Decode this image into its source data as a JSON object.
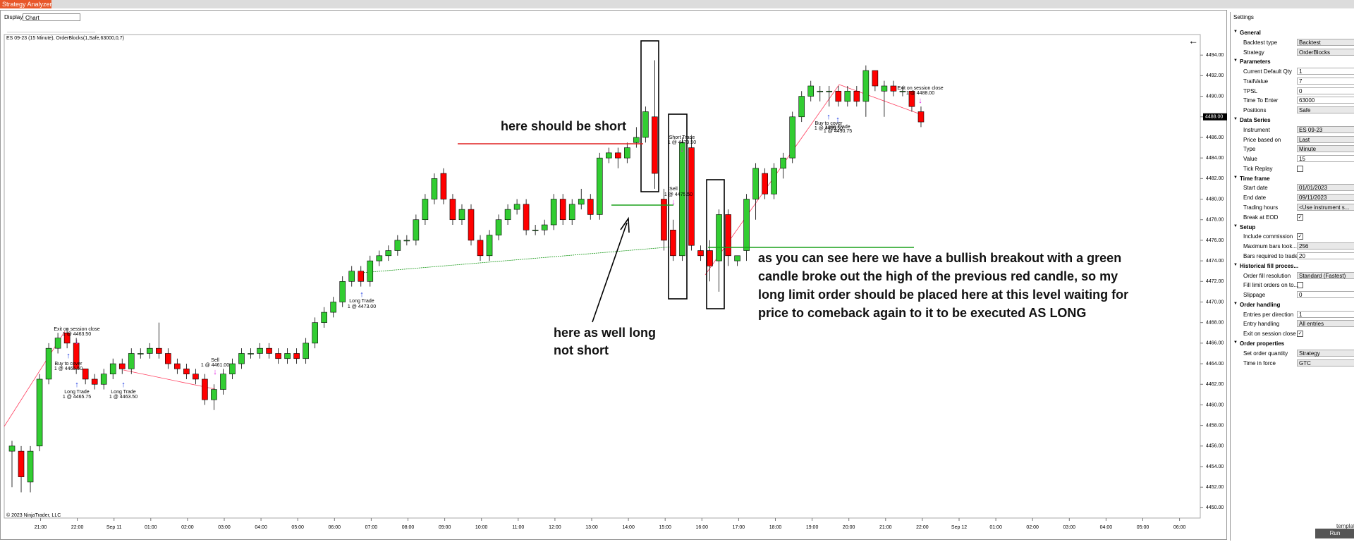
{
  "window": {
    "title": "Strategy Analyzer"
  },
  "toolbar": {
    "display_label": "Display",
    "display_value": "Chart"
  },
  "chart_data": {
    "type": "candlestick",
    "title": "ES 09-23 (15 Minute), OrderBlocks(1,Safe,63000,0,7)",
    "copyright": "© 2023 NinjaTrader, LLC",
    "up_color": "#32cd32",
    "down_color": "#ff0000",
    "ohlc": [
      [
        4455.5,
        4456.5,
        4452,
        4456
      ],
      [
        4455.5,
        4456,
        4451.5,
        4453
      ],
      [
        4452.5,
        4456,
        4451.5,
        4455.5
      ],
      [
        4456,
        4463,
        4455.5,
        4462.5
      ],
      [
        4462.5,
        4466,
        4462,
        4465.5
      ],
      [
        4465.5,
        4467,
        4465,
        4466.5
      ],
      [
        4467,
        4467.5,
        4465.5,
        4466
      ],
      [
        4466,
        4466.5,
        4463,
        4463.5
      ],
      [
        4463.5,
        4463.5,
        4462,
        4462.5
      ],
      [
        4462.5,
        4463,
        4461.5,
        4462
      ],
      [
        4462,
        4463.5,
        4461.5,
        4463
      ],
      [
        4463,
        4464.5,
        4462.5,
        4464
      ],
      [
        4464,
        4464.5,
        4463,
        4463.5
      ],
      [
        4463.5,
        4465.5,
        4463,
        4465
      ],
      [
        4465,
        4465.5,
        4464.5,
        4465
      ],
      [
        4465,
        4466,
        4464.5,
        4465.5
      ],
      [
        4465.5,
        4468,
        4464.5,
        4465
      ],
      [
        4465,
        4465.5,
        4463.5,
        4464
      ],
      [
        4464,
        4464.5,
        4463,
        4463.5
      ],
      [
        4463.5,
        4464,
        4462.5,
        4463
      ],
      [
        4463,
        4463.5,
        4462,
        4462.5
      ],
      [
        4462.5,
        4463,
        4460,
        4460.5
      ],
      [
        4460.5,
        4462,
        4459.5,
        4461.5
      ],
      [
        4461.5,
        4463.5,
        4461,
        4463
      ],
      [
        4463,
        4464.5,
        4462.5,
        4464
      ],
      [
        4464,
        4465.5,
        4463.5,
        4465
      ],
      [
        4465,
        4465.5,
        4464.5,
        4465
      ],
      [
        4465,
        4466,
        4464.5,
        4465.5
      ],
      [
        4465.5,
        4466,
        4464.5,
        4465
      ],
      [
        4465,
        4465.5,
        4464,
        4464.5
      ],
      [
        4464.5,
        4465.5,
        4464,
        4465
      ],
      [
        4465,
        4465.5,
        4464,
        4464.5
      ],
      [
        4464.5,
        4466.5,
        4464,
        4466
      ],
      [
        4466,
        4468.5,
        4465.5,
        4468
      ],
      [
        4468,
        4469.5,
        4467.5,
        4469
      ],
      [
        4469,
        4470.5,
        4468.5,
        4470
      ],
      [
        4470,
        4472.5,
        4469.5,
        4472
      ],
      [
        4472,
        4473.5,
        4471.5,
        4473
      ],
      [
        4473,
        4473.5,
        4471.5,
        4472
      ],
      [
        4472,
        4474.5,
        4471.5,
        4474
      ],
      [
        4474,
        4475,
        4473.5,
        4474.5
      ],
      [
        4474.5,
        4475.5,
        4474,
        4475
      ],
      [
        4475,
        4476.5,
        4474.5,
        4476
      ],
      [
        4476,
        4476.5,
        4475.5,
        4476
      ],
      [
        4476,
        4478.5,
        4475.5,
        4478
      ],
      [
        4478,
        4480.5,
        4477.5,
        4480
      ],
      [
        4480,
        4482.5,
        4479.5,
        4482
      ],
      [
        4482.5,
        4483,
        4479.5,
        4480
      ],
      [
        4480,
        4480.5,
        4477.5,
        4478
      ],
      [
        4478,
        4479.5,
        4477.5,
        4479
      ],
      [
        4479,
        4479.5,
        4475.5,
        4476
      ],
      [
        4476,
        4476.5,
        4474,
        4474.5
      ],
      [
        4474.5,
        4477,
        4474,
        4476.5
      ],
      [
        4476.5,
        4478.5,
        4476,
        4478
      ],
      [
        4478,
        4479.5,
        4477.5,
        4479
      ],
      [
        4479,
        4480,
        4478.5,
        4479.5
      ],
      [
        4479.5,
        4480,
        4476.5,
        4477
      ],
      [
        4477,
        4477.5,
        4476.5,
        4477
      ],
      [
        4477,
        4478,
        4476.5,
        4477.5
      ],
      [
        4477.5,
        4480.5,
        4477,
        4480
      ],
      [
        4480,
        4480.5,
        4477.5,
        4478
      ],
      [
        4478,
        4480,
        4477.5,
        4479.5
      ],
      [
        4479.5,
        4481,
        4479,
        4480
      ],
      [
        4480,
        4480.5,
        4478,
        4478.5
      ],
      [
        4478.5,
        4484.5,
        4478,
        4484
      ],
      [
        4484,
        4485,
        4483.5,
        4484.5
      ],
      [
        4484.5,
        4485,
        4483,
        4484
      ],
      [
        4484,
        4485.5,
        4483.5,
        4485
      ],
      [
        4485.5,
        4487,
        4485,
        4486
      ],
      [
        4486,
        4489,
        4485.5,
        4488.5
      ],
      [
        4488,
        4493.5,
        4481,
        4482.5
      ],
      [
        4480,
        4481,
        4475,
        4476
      ],
      [
        4477,
        4478,
        4474,
        4474.5
      ],
      [
        4474.5,
        4486,
        4474,
        4485.5
      ],
      [
        4485,
        4486,
        4475,
        4475.5
      ],
      [
        4475,
        4475.5,
        4474,
        4474.5
      ],
      [
        4475,
        4476,
        4472,
        4473.5
      ],
      [
        4474,
        4479,
        4471,
        4478.5
      ],
      [
        4478.5,
        4479,
        4473.5,
        4474.5
      ],
      [
        4474,
        4474.5,
        4473.5,
        4474.5
      ],
      [
        4475,
        4480.5,
        4474,
        4480
      ],
      [
        4480,
        4483.5,
        4478,
        4483
      ],
      [
        4482.5,
        4483,
        4480,
        4480.5
      ],
      [
        4480.5,
        4483.5,
        4480,
        4483
      ],
      [
        4483,
        4484.5,
        4482,
        4484
      ],
      [
        4484,
        4488.5,
        4483.5,
        4488
      ],
      [
        4488,
        4490.5,
        4487.5,
        4490
      ],
      [
        4490,
        4491.5,
        4489.5,
        4491
      ],
      [
        4490.5,
        4491,
        4489.5,
        4490.5
      ],
      [
        4490.5,
        4491,
        4489,
        4490.5
      ],
      [
        4490.5,
        4491,
        4489,
        4489.5
      ],
      [
        4489.5,
        4491,
        4489,
        4490.5
      ],
      [
        4490.5,
        4491,
        4489,
        4489.5
      ],
      [
        4489.5,
        4493,
        4488,
        4492.5
      ],
      [
        4492.5,
        4492.5,
        4490.5,
        4491
      ],
      [
        4490.5,
        4491.5,
        4488,
        4491
      ],
      [
        4491,
        4491.5,
        4490,
        4490.5
      ],
      [
        4490.5,
        4491,
        4490,
        4490.5
      ],
      [
        4490.5,
        4490.5,
        4488.5,
        4489
      ],
      [
        4488.5,
        4489,
        4487,
        4487.5
      ]
    ],
    "x_labels": [
      "21:00",
      "22:00",
      "Sep 11",
      "01:00",
      "02:00",
      "03:00",
      "04:00",
      "05:00",
      "06:00",
      "07:00",
      "08:00",
      "09:00",
      "10:00",
      "11:00",
      "12:00",
      "13:00",
      "14:00",
      "15:00",
      "16:00",
      "17:00",
      "18:00",
      "19:00",
      "20:00",
      "21:00",
      "22:00",
      "Sep 12",
      "01:00",
      "02:00",
      "03:00",
      "04:00",
      "05:00",
      "06:00"
    ],
    "ylim": [
      4449,
      4496
    ],
    "yticks": [
      {
        "value": 4450,
        "label": "4450.00"
      },
      {
        "value": 4452,
        "label": "4452.00"
      },
      {
        "value": 4454,
        "label": "4454.00"
      },
      {
        "value": 4456,
        "label": "4456.00"
      },
      {
        "value": 4458,
        "label": "4458.00"
      },
      {
        "value": 4460,
        "label": "4460.00"
      },
      {
        "value": 4462,
        "label": "4462.00"
      },
      {
        "value": 4464,
        "label": "4464.00"
      },
      {
        "value": 4466,
        "label": "4466.00"
      },
      {
        "value": 4468,
        "label": "4468.00"
      },
      {
        "value": 4470,
        "label": "4470.00"
      },
      {
        "value": 4472,
        "label": "4472.00"
      },
      {
        "value": 4474,
        "label": "4474.00"
      },
      {
        "value": 4476,
        "label": "4476.00"
      },
      {
        "value": 4478,
        "label": "4478.00"
      },
      {
        "value": 4480,
        "label": "4480.00"
      },
      {
        "value": 4482,
        "label": "4482.00"
      },
      {
        "value": 4484,
        "label": "4484.00"
      },
      {
        "value": 4486,
        "label": "4486.00"
      },
      {
        "value": 4488,
        "label": "4488.00"
      },
      {
        "value": 4490,
        "label": "4490.00"
      },
      {
        "value": 4492,
        "label": "4492.00"
      },
      {
        "value": 4494,
        "label": "4494.00"
      }
    ],
    "last_price": {
      "value": 4488,
      "label": "4488.00"
    },
    "annotations": [
      "Exit on session close",
      "1 @ 4463.50",
      "Buy to cover",
      "1 @ 4465.50",
      "Long Trade",
      "1 @ 4465.75",
      "Long Trade",
      "1 @ 4463.50",
      "Sell",
      "1 @ 4461.00",
      "Long Trade",
      "1 @ 4473.00",
      "Short Trade",
      "1 @ 4479.50",
      "Sell",
      "1 @ 4475.50",
      "Buy to cover",
      "1 @ 4489.50",
      "Long Trade",
      "1 @ 4490.75",
      "Exit on session close",
      "1 @ 4488.00"
    ],
    "notes": [
      "here should be short",
      "here as well long",
      "not short",
      "as you can see here we have a bullish breakout with a green",
      "candle broke out the high of the previous red candle, so my",
      "long limit order should be placed here at this level waiting for",
      "price to comeback again to it to be executed AS LONG"
    ]
  },
  "settings": {
    "title": "Settings",
    "sections": [
      {
        "title": "General",
        "rows": [
          {
            "label": "Backtest type",
            "value": "Backtest"
          },
          {
            "label": "Strategy",
            "value": "OrderBlocks"
          }
        ]
      },
      {
        "title": "Parameters",
        "rows": [
          {
            "label": "Current Default Qty",
            "value": "1"
          },
          {
            "label": "TrailValue",
            "value": "7"
          },
          {
            "label": "TPSL",
            "value": "0"
          },
          {
            "label": "Time To Enter",
            "value": "63000"
          },
          {
            "label": "Positions",
            "value": "Safe"
          }
        ]
      },
      {
        "title": "Data Series",
        "rows": [
          {
            "label": "Instrument",
            "value": "ES 09-23"
          },
          {
            "label": "Price based on",
            "value": "Last"
          },
          {
            "label": "Type",
            "value": "Minute"
          },
          {
            "label": "Value",
            "value": "15"
          },
          {
            "label": "Tick Replay",
            "checked": false
          }
        ]
      },
      {
        "title": "Time frame",
        "rows": [
          {
            "label": "Start date",
            "value": "01/01/2023"
          },
          {
            "label": "End date",
            "value": "09/11/2023"
          },
          {
            "label": "Trading hours",
            "value": "<Use instrument s..."
          },
          {
            "label": "Break at EOD",
            "checked": true
          }
        ]
      },
      {
        "title": "Setup",
        "rows": [
          {
            "label": "Include commission",
            "checked": true
          },
          {
            "label": "Maximum bars look...",
            "value": "256"
          },
          {
            "label": "Bars required to trade",
            "value": "20"
          }
        ]
      },
      {
        "title": "Historical fill proces...",
        "rows": [
          {
            "label": "Order fill resolution",
            "value": "Standard (Fastest)"
          },
          {
            "label": "Fill limit orders on to...",
            "checked": false
          },
          {
            "label": "Slippage",
            "value": "0"
          }
        ]
      },
      {
        "title": "Order handling",
        "rows": [
          {
            "label": "Entries per direction",
            "value": "1"
          },
          {
            "label": "Entry handling",
            "value": "All entries"
          },
          {
            "label": "Exit on session close",
            "checked": true
          }
        ]
      },
      {
        "title": "Order properties",
        "rows": [
          {
            "label": "Set order quantity",
            "value": "Strategy"
          },
          {
            "label": "Time in force",
            "value": "GTC"
          }
        ]
      }
    ],
    "template": "templat",
    "run": "Run"
  }
}
